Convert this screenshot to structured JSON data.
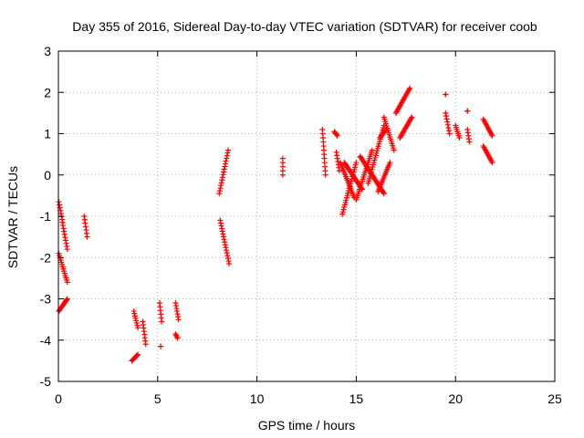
{
  "chart_data": {
    "type": "scatter",
    "title": "Day 355 of 2016, Sidereal Day-to-day VTEC variation (SDTVAR) for receiver coob",
    "xlabel": "GPS time / hours",
    "ylabel": "SDTVAR / TECUs",
    "xlim": [
      0,
      25
    ],
    "ylim": [
      -5,
      3
    ],
    "x_ticks": [
      0,
      5,
      10,
      15,
      20,
      25
    ],
    "y_ticks": [
      -5,
      -4,
      -3,
      -2,
      -1,
      0,
      1,
      2,
      3
    ],
    "grid": true,
    "marker": "+",
    "colors": {
      "series": "#ff0000",
      "axis": "#000000",
      "grid": "#b0b0b0"
    },
    "segments": [
      {
        "x0": 0.02,
        "x1": 0.22,
        "y0": -0.65,
        "y1": -1.15
      },
      {
        "x0": 0.2,
        "x1": 0.45,
        "y0": -1.15,
        "y1": -1.8
      },
      {
        "x0": 0.02,
        "x1": 0.45,
        "y0": -1.9,
        "y1": -2.6
      },
      {
        "x0": 0.02,
        "x1": 0.45,
        "y0": -3.3,
        "y1": -3.0
      },
      {
        "x0": 1.3,
        "x1": 1.45,
        "y0": -1.0,
        "y1": -1.5
      },
      {
        "x0": 3.7,
        "x1": 4.0,
        "y0": -4.5,
        "y1": -4.35
      },
      {
        "x0": 3.8,
        "x1": 4.0,
        "y0": -3.3,
        "y1": -3.7
      },
      {
        "x0": 4.25,
        "x1": 4.4,
        "y0": -3.55,
        "y1": -4.1
      },
      {
        "x0": 5.1,
        "x1": 5.2,
        "y0": -3.1,
        "y1": -3.55
      },
      {
        "x0": 5.15,
        "x1": 5.15,
        "y0": -4.15,
        "y1": -4.15
      },
      {
        "x0": 5.9,
        "x1": 6.05,
        "y0": -3.1,
        "y1": -3.5
      },
      {
        "x0": 5.9,
        "x1": 6.0,
        "y0": -3.85,
        "y1": -3.95
      },
      {
        "x0": 8.1,
        "x1": 8.55,
        "y0": -0.45,
        "y1": 0.6
      },
      {
        "x0": 8.15,
        "x1": 8.6,
        "y0": -1.1,
        "y1": -2.15
      },
      {
        "x0": 11.3,
        "x1": 11.3,
        "y0": 0.4,
        "y1": 0.0
      },
      {
        "x0": 13.3,
        "x1": 13.45,
        "y0": 1.1,
        "y1": 0.0
      },
      {
        "x0": 13.9,
        "x1": 14.05,
        "y0": 1.05,
        "y1": 0.95
      },
      {
        "x0": 14.0,
        "x1": 14.15,
        "y0": 0.55,
        "y1": 0.1
      },
      {
        "x0": 14.3,
        "x1": 15.0,
        "y0": -0.95,
        "y1": 0.3
      },
      {
        "x0": 14.2,
        "x1": 14.9,
        "y0": 0.3,
        "y1": -0.55
      },
      {
        "x0": 14.4,
        "x1": 15.3,
        "y0": 0.3,
        "y1": -0.35
      },
      {
        "x0": 15.0,
        "x1": 15.8,
        "y0": -0.6,
        "y1": 0.6
      },
      {
        "x0": 15.2,
        "x1": 16.4,
        "y0": 0.45,
        "y1": -0.45
      },
      {
        "x0": 15.6,
        "x1": 16.4,
        "y0": -0.2,
        "y1": 1.2
      },
      {
        "x0": 16.1,
        "x1": 16.7,
        "y0": -0.4,
        "y1": 0.3
      },
      {
        "x0": 16.4,
        "x1": 16.9,
        "y0": 1.4,
        "y1": 0.6
      },
      {
        "x0": 17.0,
        "x1": 17.7,
        "y0": 1.5,
        "y1": 2.1
      },
      {
        "x0": 17.2,
        "x1": 17.8,
        "y0": 0.9,
        "y1": 1.4
      },
      {
        "x0": 16.2,
        "x1": 16.5,
        "y0": 0.9,
        "y1": 1.1
      },
      {
        "x0": 19.5,
        "x1": 19.5,
        "y0": 1.95,
        "y1": 1.95
      },
      {
        "x0": 19.5,
        "x1": 19.7,
        "y0": 1.5,
        "y1": 1.0
      },
      {
        "x0": 20.0,
        "x1": 20.2,
        "y0": 1.2,
        "y1": 0.9
      },
      {
        "x0": 20.6,
        "x1": 20.6,
        "y0": 1.55,
        "y1": 1.55
      },
      {
        "x0": 20.6,
        "x1": 20.7,
        "y0": 1.1,
        "y1": 0.8
      },
      {
        "x0": 21.4,
        "x1": 21.85,
        "y0": 1.35,
        "y1": 0.95
      },
      {
        "x0": 21.4,
        "x1": 21.85,
        "y0": 0.7,
        "y1": 0.3
      }
    ]
  }
}
